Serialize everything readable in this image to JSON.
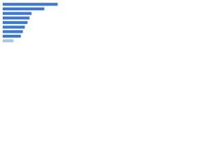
{
  "chart_data": {
    "type": "hbar",
    "categories": [
      null,
      null,
      null,
      null,
      null,
      null,
      null,
      null,
      null
    ],
    "values": [
      82,
      62,
      43,
      40,
      37,
      33,
      30,
      27,
      16
    ],
    "colors": [
      "#3c78d8",
      "#3c78d8",
      "#3c78d8",
      "#3c78d8",
      "#3c78d8",
      "#3c78d8",
      "#3c78d8",
      "#3c78d8",
      "#a8c4ee"
    ],
    "xlim": [
      0,
      96
    ]
  }
}
